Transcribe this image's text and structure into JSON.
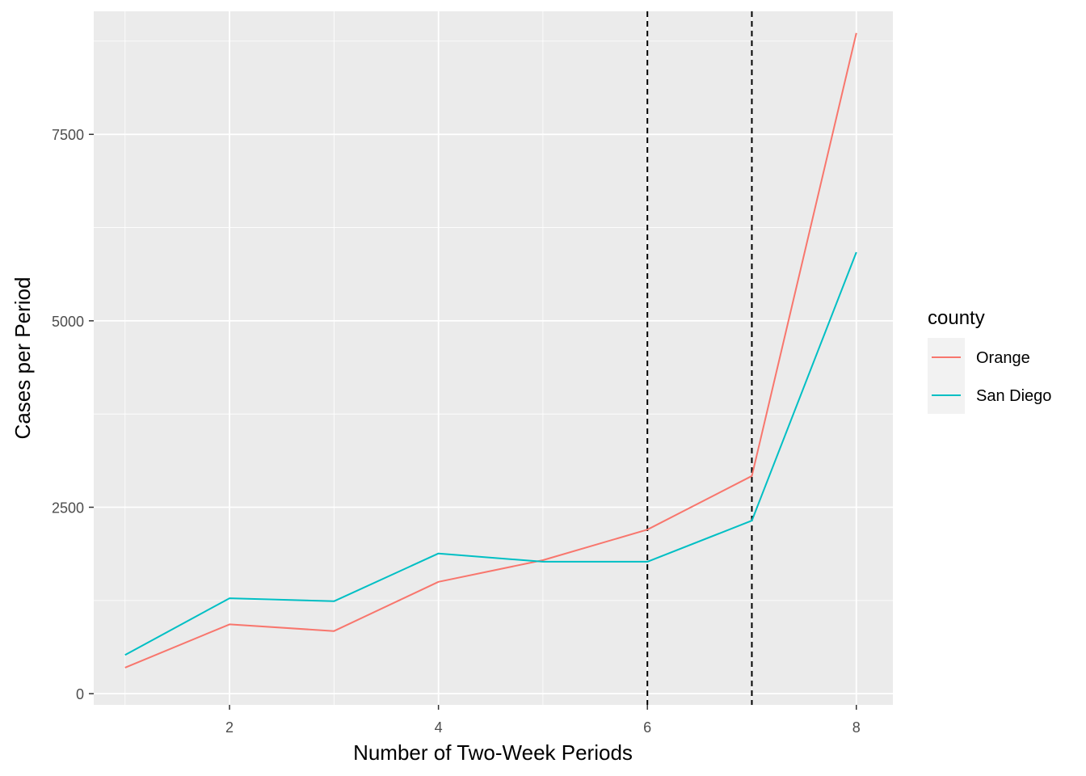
{
  "chart_data": {
    "type": "line",
    "title": "",
    "xlabel": "Number of Two-Week Periods",
    "ylabel": "Cases per Period",
    "xlim": [
      0.7,
      8.35
    ],
    "ylim": [
      -150,
      9150
    ],
    "x_ticks": [
      2,
      4,
      6,
      8
    ],
    "y_ticks": [
      0,
      2500,
      5000,
      7500
    ],
    "x_tick_labels": [
      "2",
      "4",
      "6",
      "8"
    ],
    "y_tick_labels": [
      "0",
      "2500",
      "5000",
      "7500"
    ],
    "x_minor_ticks": [
      1,
      3,
      5,
      7
    ],
    "y_minor_ticks": [
      1250,
      3750,
      6250,
      8750
    ],
    "grid": true,
    "legend": {
      "title": "county",
      "position": "right"
    },
    "vlines": [
      {
        "x": 6,
        "style": "dashed",
        "color": "#000000"
      },
      {
        "x": 7,
        "style": "dashed",
        "color": "#000000"
      }
    ],
    "x": [
      1,
      2,
      3,
      4,
      5,
      6,
      7,
      8
    ],
    "series": [
      {
        "name": "Orange",
        "color": "#F8766D",
        "values": [
          350,
          930,
          840,
          1500,
          1790,
          2200,
          2920,
          8860
        ]
      },
      {
        "name": "San Diego",
        "color": "#00BFC4",
        "values": [
          520,
          1280,
          1240,
          1880,
          1770,
          1770,
          2320,
          5920
        ]
      }
    ]
  }
}
